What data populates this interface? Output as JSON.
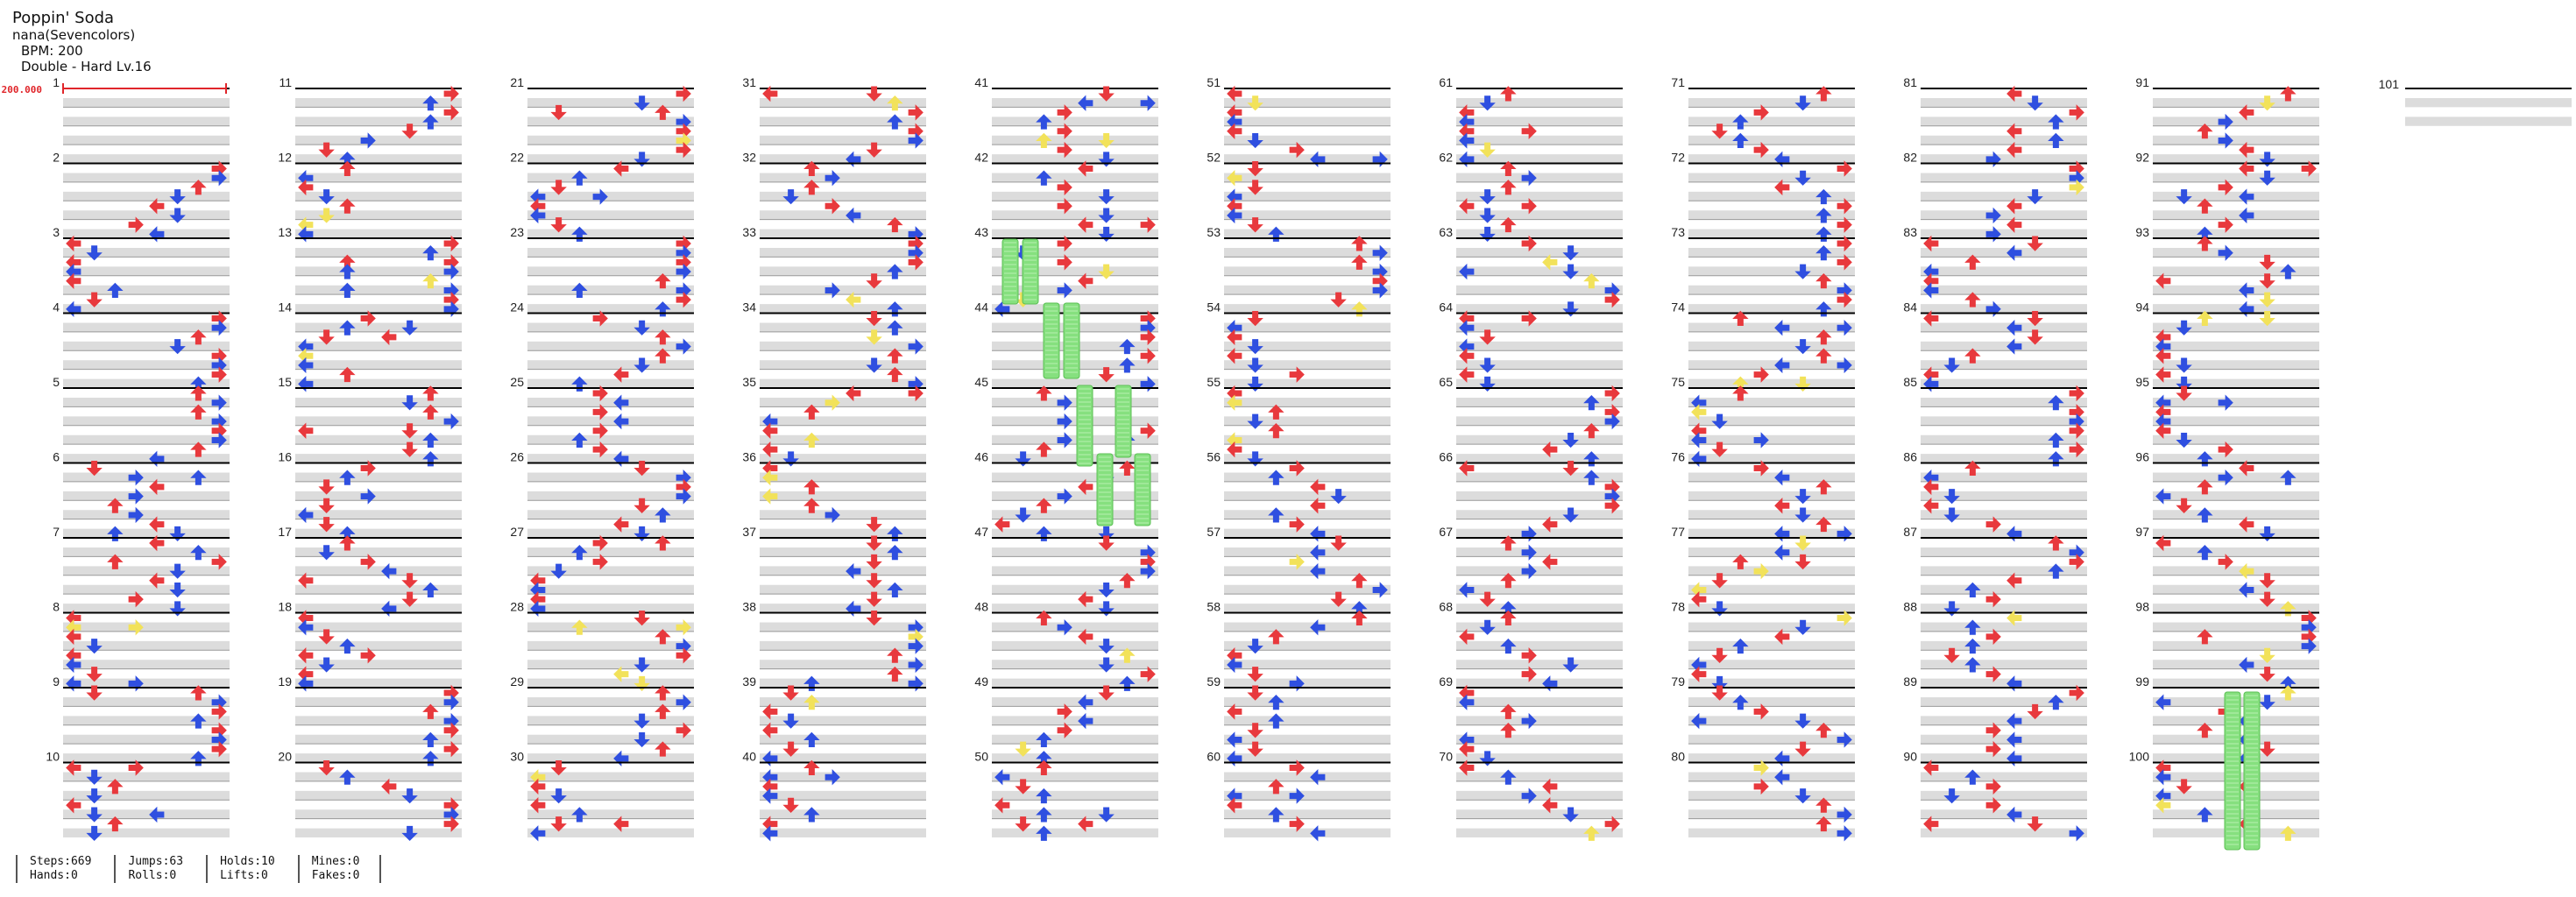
{
  "song": {
    "title": "Poppin' Soda",
    "artist": "nana(Sevencolors)",
    "bpm_label": "BPM: 200",
    "difficulty_label": "Double - Hard Lv.16"
  },
  "bpm_marker": "200.000",
  "measures": {
    "count": 100,
    "per_column": 10,
    "columns": 11,
    "final_label": 101
  },
  "panel_colors": {
    "red": "#e8393d",
    "blue": "#2f4fe0",
    "yellow": "#f2e25a",
    "hold": "#86e07f",
    "stripe": "#dcdcdc",
    "bpm_line": "#e0252a"
  },
  "stats": [
    {
      "top_label": "Steps",
      "top_value": "669",
      "bottom_label": "Hands",
      "bottom_value": "0"
    },
    {
      "top_label": "Jumps",
      "top_value": "63",
      "bottom_label": "Rolls",
      "bottom_value": "0"
    },
    {
      "top_label": "Holds",
      "top_value": "10",
      "bottom_label": "Lifts",
      "bottom_value": "0"
    },
    {
      "top_label": "Mines",
      "top_value": "0",
      "bottom_label": "Fakes",
      "bottom_value": "0"
    }
  ]
}
